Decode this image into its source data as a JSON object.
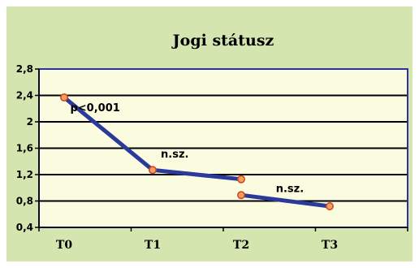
{
  "chart_data": {
    "type": "line",
    "title": "Jogi státusz",
    "xlabel": "",
    "ylabel": "",
    "categories": [
      "T0",
      "T1",
      "T2",
      "T3"
    ],
    "ylim": [
      0.4,
      2.8
    ],
    "yticks": [
      0.4,
      0.8,
      1.2,
      1.6,
      2,
      2.4,
      2.8
    ],
    "ytick_labels": [
      "0,4",
      "0,8",
      "1,2",
      "1,6",
      "2",
      "2,4",
      "2,8"
    ],
    "series": [
      {
        "segment": "first",
        "points": [
          {
            "x": "T0",
            "y": 2.37
          },
          {
            "x": "T1",
            "y": 1.27
          },
          {
            "x": "T2",
            "y": 1.13
          }
        ]
      },
      {
        "segment": "second",
        "points": [
          {
            "x": "T2",
            "y": 0.89
          },
          {
            "x": "T3",
            "y": 0.72
          }
        ]
      }
    ],
    "annotations": [
      {
        "text": "p<0,001",
        "x": 0.35,
        "y": 2.22
      },
      {
        "text": "n.sz.",
        "x": 1.25,
        "y": 1.52
      },
      {
        "text": "n.sz.",
        "x": 2.55,
        "y": 1.0
      }
    ],
    "grid": true,
    "colors": {
      "outer_background": "#d4e5b0",
      "plot_background": "#fbfbe0",
      "plot_border": "#3030a0",
      "line": "#2a3a9a",
      "marker_fill": "#f0a060",
      "marker_edge": "#d04020",
      "gridline": "#000000"
    }
  }
}
